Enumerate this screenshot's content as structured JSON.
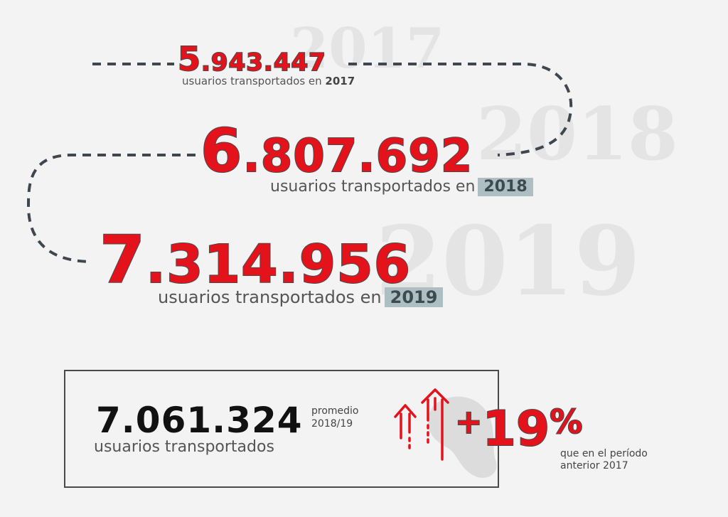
{
  "watermarks": {
    "y2017": "2017",
    "y2018": "2018",
    "y2019": "2019"
  },
  "stats": [
    {
      "number_lead": "5",
      "number_rest": ".943.447",
      "caption": "usuarios transportados en",
      "year": "2017"
    },
    {
      "number_lead": "6",
      "number_rest": ".807.692",
      "caption": "usuarios transportados en",
      "year": "2018"
    },
    {
      "number_lead": "7",
      "number_rest": ".314.956",
      "caption": "usuarios transportados en",
      "year": "2019"
    }
  ],
  "summary": {
    "average_number": "7.061.324",
    "average_label_line1": "promedio",
    "average_label_line2": "2018/19",
    "average_caption": "usuarios transportados",
    "change_sign": "+",
    "change_value": "19",
    "change_unit": "%",
    "change_label_line1": "que en el período",
    "change_label_line2": "anterior 2017"
  },
  "colors": {
    "accent_red": "#e3121b",
    "outline": "#4a4a4a",
    "year_highlight": "#adbfc2",
    "background": "#f3f3f3"
  },
  "icons": [
    "dashed-path",
    "up-arrows-icon",
    "map-blob"
  ]
}
